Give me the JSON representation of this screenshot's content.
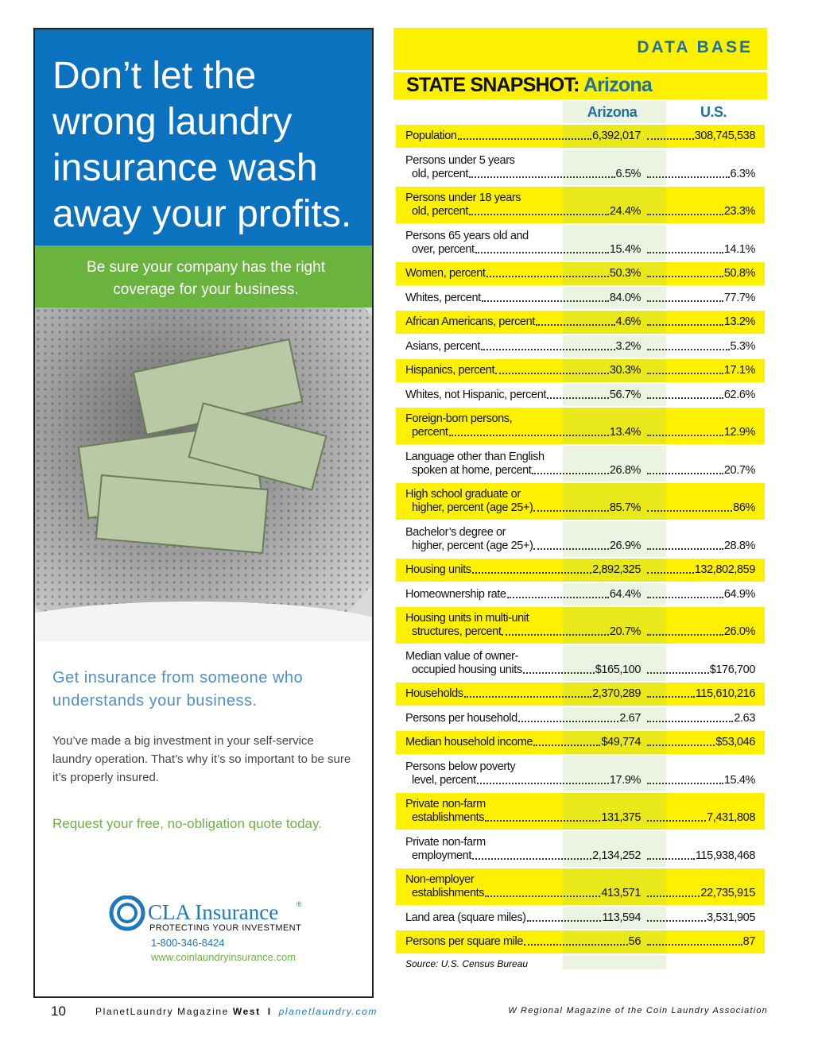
{
  "ad": {
    "headline": "Don’t let the wrong laundry insurance wash away your profits.",
    "subhead": "Be sure your company has the right coverage for your business.",
    "tagline": "Get insurance from someone who understands your business.",
    "body": "You’ve made a big investment in your self-service laundry operation. That’s why it’s so important to be sure it’s properly insured.",
    "cta": "Request your free, no-obligation quote today.",
    "logo": {
      "name": "CLA Insurance",
      "registered": "®",
      "slogan": "PROTECTING YOUR INVESTMENT",
      "phone": "1-800-346-8424",
      "url": "www.coinlaundryinsurance.com"
    }
  },
  "section": "DATA BASE",
  "table": {
    "title_prefix": "STATE SNAPSHOT:",
    "title_state": "Arizona",
    "columns": [
      "Arizona",
      "U.S."
    ],
    "rows": [
      {
        "label": [
          "Population"
        ],
        "arizona": "6,392,017",
        "us": "308,745,538"
      },
      {
        "label": [
          "Persons under 5 years",
          "old, percent"
        ],
        "arizona": "6.5%",
        "us": "6.3%"
      },
      {
        "label": [
          "Persons under 18 years",
          "old, percent"
        ],
        "arizona": "24.4%",
        "us": "23.3%"
      },
      {
        "label": [
          "Persons 65 years old and",
          "over, percent"
        ],
        "arizona": "15.4%",
        "us": "14.1%"
      },
      {
        "label": [
          "Women, percent"
        ],
        "arizona": "50.3%",
        "us": "50.8%"
      },
      {
        "label": [
          "Whites, percent"
        ],
        "arizona": "84.0%",
        "us": "77.7%"
      },
      {
        "label": [
          "African Americans, percent"
        ],
        "arizona": "4.6%",
        "us": "13.2%"
      },
      {
        "label": [
          "Asians, percent"
        ],
        "arizona": "3.2%",
        "us": "5.3%"
      },
      {
        "label": [
          "Hispanics, percent"
        ],
        "arizona": "30.3%",
        "us": "17.1%"
      },
      {
        "label": [
          "Whites, not Hispanic, percent"
        ],
        "arizona": "56.7%",
        "us": "62.6%"
      },
      {
        "label": [
          "Foreign-born persons,",
          "percent"
        ],
        "arizona": "13.4%",
        "us": "12.9%"
      },
      {
        "label": [
          "Language other than English",
          "spoken at home, percent"
        ],
        "arizona": "26.8%",
        "us": "20.7%"
      },
      {
        "label": [
          "High school graduate or",
          "higher, percent (age 25+)"
        ],
        "arizona": "85.7%",
        "us": "86%"
      },
      {
        "label": [
          "Bachelor’s degree or",
          "higher, percent (age 25+)"
        ],
        "arizona": "26.9%",
        "us": "28.8%"
      },
      {
        "label": [
          "Housing units"
        ],
        "arizona": "2,892,325",
        "us": "132,802,859"
      },
      {
        "label": [
          "Homeownership rate"
        ],
        "arizona": "64.4%",
        "us": "64.9%"
      },
      {
        "label": [
          "Housing units in multi-unit",
          "structures, percent"
        ],
        "arizona": "20.7%",
        "us": "26.0%"
      },
      {
        "label": [
          "Median value of owner-",
          "occupied housing units"
        ],
        "arizona": "$165,100",
        "us": "$176,700"
      },
      {
        "label": [
          "Households"
        ],
        "arizona": "2,370,289",
        "us": "115,610,216"
      },
      {
        "label": [
          "Persons per household"
        ],
        "arizona": "2.67",
        "us": "2.63"
      },
      {
        "label": [
          "Median household income"
        ],
        "arizona": "$49,774",
        "us": "$53,046"
      },
      {
        "label": [
          "Persons below poverty",
          "level, percent"
        ],
        "arizona": "17.9%",
        "us": "15.4%"
      },
      {
        "label": [
          "Private non-farm",
          "establishments"
        ],
        "arizona": "131,375",
        "us": "7,431,808"
      },
      {
        "label": [
          "Private non-farm",
          "employment"
        ],
        "arizona": "2,134,252",
        "us": "115,938,468"
      },
      {
        "label": [
          "Non-employer",
          "establishments"
        ],
        "arizona": "413,571",
        "us": "22,735,915"
      },
      {
        "label": [
          "Land area (square miles)"
        ],
        "arizona": "113,594",
        "us": "3,531,905"
      },
      {
        "label": [
          "Persons per square mile"
        ],
        "arizona": "56",
        "us": "87"
      }
    ],
    "source": "Source: U.S. Census Bureau"
  },
  "footer": {
    "page": "10",
    "magazine": "PlanetLaundry Magazine",
    "edition": "West",
    "separator": "I",
    "site": "planetlaundry.com",
    "right": "W Regional Magazine of the Coin Laundry Association"
  }
}
